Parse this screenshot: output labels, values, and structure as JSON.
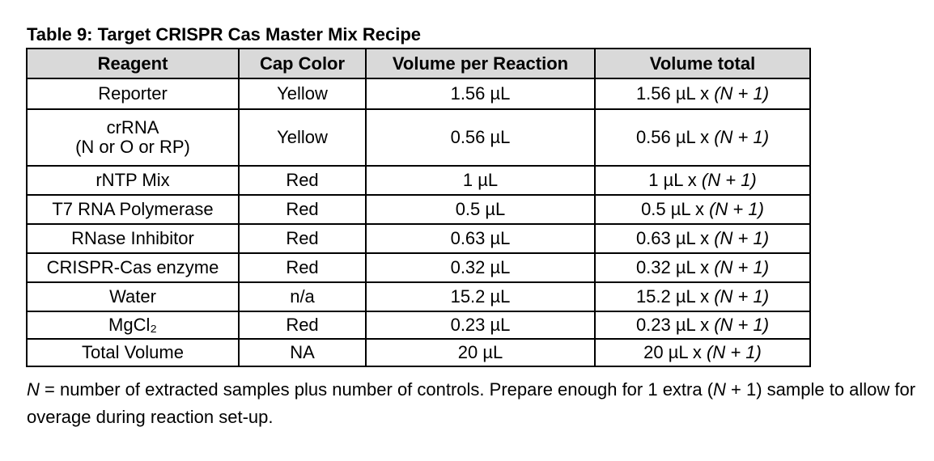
{
  "caption": "Table 9: Target CRISPR Cas Master Mix Recipe",
  "headers": {
    "reagent": "Reagent",
    "cap_color": "Cap Color",
    "volume_per_reaction": "Volume per Reaction",
    "volume_total": "Volume total"
  },
  "total_suffix": "(N + 1)",
  "rows": [
    {
      "reagent": "Reporter",
      "cap": "Yellow",
      "per_reaction": "1.56 µL",
      "total_prefix": "1.56 µL x "
    },
    {
      "reagent_line1": "crRNA",
      "reagent_line2": "(N or O or RP)",
      "cap": "Yellow",
      "per_reaction": "0.56 µL",
      "total_prefix": "0.56 µL x "
    },
    {
      "reagent": "rNTP Mix",
      "cap": "Red",
      "per_reaction": "1 µL",
      "total_prefix": "1 µL x "
    },
    {
      "reagent": "T7 RNA Polymerase",
      "cap": "Red",
      "per_reaction": "0.5 µL",
      "total_prefix": "0.5 µL x "
    },
    {
      "reagent": "RNase Inhibitor",
      "cap": "Red",
      "per_reaction": "0.63 µL",
      "total_prefix": "0.63 µL x "
    },
    {
      "reagent": "CRISPR-Cas enzyme",
      "cap": "Red",
      "per_reaction": "0.32 µL",
      "total_prefix": "0.32 µL x "
    },
    {
      "reagent": "Water",
      "cap": "n/a",
      "per_reaction": "15.2 µL",
      "total_prefix": "15.2 µL x "
    },
    {
      "reagent": "MgCl₂",
      "cap": "Red",
      "per_reaction": "0.23 µL",
      "total_prefix": "0.23 µL x "
    },
    {
      "reagent": "Total Volume",
      "cap": "NA",
      "per_reaction": "20 µL",
      "total_prefix": "20 µL x "
    }
  ],
  "note": {
    "var": "N",
    "text_a": " = number of extracted samples plus number of controls. Prepare enough for 1 extra (",
    "var2": "N",
    "text_b": " + 1) sample to allow for overage during reaction set-up."
  },
  "colors": {
    "header_background": "#d9d9d9",
    "border": "#000000",
    "text": "#000000"
  }
}
